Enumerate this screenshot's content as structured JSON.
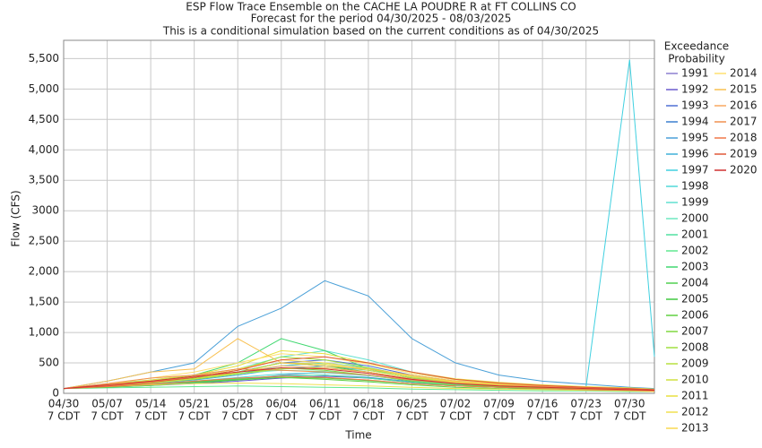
{
  "chart_data": {
    "type": "line",
    "title": "ESP Flow Trace Ensemble on the CACHE LA POUDRE R at FT COLLINS CO",
    "subtitle": [
      "Forecast for the period 04/30/2025 - 08/03/2025",
      "This is a conditional simulation based on the current conditions as of 04/30/2025"
    ],
    "x_label": "Time",
    "y_label": "Flow (CFS)",
    "legend_title": [
      "Exceedance",
      "Probability"
    ],
    "x": [
      "04/30",
      "05/07",
      "05/14",
      "05/21",
      "05/28",
      "06/04",
      "06/11",
      "06/18",
      "06/25",
      "07/02",
      "07/09",
      "07/16",
      "07/23",
      "07/30",
      "08/03"
    ],
    "xlim": [
      "04/30",
      "08/03"
    ],
    "xticks": [
      "04/30",
      "05/07",
      "05/14",
      "05/21",
      "05/28",
      "06/04",
      "06/11",
      "06/18",
      "06/25",
      "07/02",
      "07/09",
      "07/16",
      "07/23",
      "07/30"
    ],
    "xtick_suffix": "7 CDT",
    "ylim": [
      0,
      5800
    ],
    "yticks": [
      0,
      500,
      {
        "value": 1000,
        "label": "1,000"
      },
      {
        "value": 1500,
        "label": "1,500"
      },
      {
        "value": 2000,
        "label": "2,000"
      },
      {
        "value": 2500,
        "label": "2,500"
      },
      3000,
      {
        "value": 3500,
        "label": "3,500"
      },
      {
        "value": 4000,
        "label": "4,000"
      },
      {
        "value": 4500,
        "label": "4,500"
      },
      {
        "value": 5000,
        "label": "5,000"
      },
      {
        "value": 5500,
        "label": "5,500"
      }
    ],
    "grid": true,
    "series": [
      {
        "name": "1991",
        "color": "#8c7fd0",
        "values": [
          80,
          120,
          150,
          180,
          220,
          300,
          350,
          300,
          220,
          150,
          120,
          100,
          80,
          60,
          50
        ]
      },
      {
        "name": "1992",
        "color": "#6a5acd",
        "values": [
          80,
          100,
          130,
          160,
          200,
          250,
          280,
          250,
          180,
          130,
          100,
          80,
          70,
          50,
          40
        ]
      },
      {
        "name": "1993",
        "color": "#4f6fd4",
        "values": [
          80,
          150,
          200,
          250,
          350,
          500,
          550,
          450,
          300,
          200,
          150,
          120,
          100,
          80,
          60
        ]
      },
      {
        "name": "1994",
        "color": "#3a7fcf",
        "values": [
          80,
          110,
          140,
          180,
          230,
          280,
          300,
          260,
          190,
          140,
          110,
          90,
          70,
          50,
          40
        ]
      },
      {
        "name": "1995",
        "color": "#4aa0d8",
        "values": [
          80,
          200,
          350,
          500,
          1100,
          1400,
          1850,
          1600,
          900,
          500,
          300,
          200,
          150,
          100,
          80
        ]
      },
      {
        "name": "1996",
        "color": "#3fb0d8",
        "values": [
          80,
          130,
          170,
          220,
          300,
          400,
          450,
          380,
          260,
          180,
          140,
          110,
          90,
          70,
          50
        ]
      },
      {
        "name": "1997",
        "color": "#40d0e0",
        "values": [
          80,
          140,
          180,
          240,
          320,
          450,
          500,
          420,
          280,
          190,
          150,
          120,
          100,
          5480,
          600
        ]
      },
      {
        "name": "1998",
        "color": "#50d8d8",
        "values": [
          80,
          120,
          160,
          200,
          260,
          320,
          340,
          290,
          210,
          150,
          120,
          100,
          80,
          60,
          50
        ]
      },
      {
        "name": "1999",
        "color": "#60e0d0",
        "values": [
          80,
          160,
          220,
          300,
          400,
          600,
          700,
          550,
          350,
          220,
          160,
          130,
          100,
          80,
          60
        ]
      },
      {
        "name": "2000",
        "color": "#6ee8c0",
        "values": [
          80,
          140,
          200,
          260,
          330,
          380,
          360,
          300,
          200,
          140,
          110,
          90,
          70,
          50,
          40
        ]
      },
      {
        "name": "2001",
        "color": "#50e0a0",
        "values": [
          80,
          110,
          150,
          190,
          240,
          290,
          300,
          250,
          180,
          130,
          100,
          80,
          60,
          50,
          40
        ]
      },
      {
        "name": "2002",
        "color": "#60e890",
        "values": [
          80,
          90,
          100,
          110,
          120,
          110,
          100,
          90,
          70,
          60,
          50,
          40,
          40,
          30,
          30
        ]
      },
      {
        "name": "2003",
        "color": "#40d870",
        "values": [
          80,
          130,
          200,
          300,
          500,
          900,
          700,
          400,
          250,
          170,
          130,
          100,
          80,
          60,
          50
        ]
      },
      {
        "name": "2004",
        "color": "#50d050",
        "values": [
          80,
          100,
          130,
          170,
          220,
          260,
          250,
          210,
          160,
          120,
          100,
          80,
          60,
          50,
          40
        ]
      },
      {
        "name": "2005",
        "color": "#40c840",
        "values": [
          80,
          120,
          180,
          250,
          350,
          500,
          450,
          350,
          230,
          160,
          120,
          100,
          80,
          60,
          50
        ]
      },
      {
        "name": "2006",
        "color": "#60d040",
        "values": [
          80,
          110,
          150,
          190,
          230,
          260,
          230,
          190,
          140,
          100,
          80,
          70,
          60,
          40,
          30
        ]
      },
      {
        "name": "2007",
        "color": "#80d840",
        "values": [
          80,
          120,
          170,
          230,
          320,
          420,
          380,
          300,
          200,
          140,
          110,
          90,
          70,
          50,
          40
        ]
      },
      {
        "name": "2008",
        "color": "#a0e040",
        "values": [
          80,
          130,
          190,
          260,
          380,
          600,
          550,
          420,
          280,
          190,
          140,
          110,
          90,
          70,
          50
        ]
      },
      {
        "name": "2009",
        "color": "#b8e040",
        "values": [
          80,
          130,
          180,
          240,
          320,
          400,
          420,
          350,
          240,
          170,
          130,
          100,
          80,
          60,
          50
        ]
      },
      {
        "name": "2010",
        "color": "#d0e040",
        "values": [
          80,
          120,
          170,
          240,
          340,
          500,
          480,
          380,
          260,
          180,
          140,
          110,
          90,
          70,
          50
        ]
      },
      {
        "name": "2011",
        "color": "#e8e040",
        "values": [
          80,
          150,
          220,
          300,
          450,
          700,
          650,
          500,
          350,
          240,
          180,
          140,
          110,
          90,
          70
        ]
      },
      {
        "name": "2012",
        "color": "#f0e050",
        "values": [
          80,
          110,
          140,
          160,
          170,
          160,
          140,
          120,
          100,
          80,
          70,
          60,
          50,
          40,
          30
        ]
      },
      {
        "name": "2013",
        "color": "#f8d850",
        "values": [
          80,
          140,
          200,
          280,
          400,
          550,
          500,
          400,
          280,
          190,
          150,
          120,
          100,
          80,
          60
        ]
      },
      {
        "name": "2014",
        "color": "#ffe070",
        "values": [
          80,
          150,
          250,
          350,
          500,
          650,
          600,
          480,
          330,
          220,
          170,
          130,
          100,
          80,
          60
        ]
      },
      {
        "name": "2015",
        "color": "#f8c050",
        "values": [
          80,
          200,
          350,
          400,
          900,
          500,
          450,
          400,
          300,
          200,
          160,
          130,
          100,
          80,
          60
        ]
      },
      {
        "name": "2016",
        "color": "#f8a860",
        "values": [
          80,
          130,
          190,
          260,
          350,
          450,
          420,
          350,
          240,
          170,
          130,
          110,
          90,
          70,
          50
        ]
      },
      {
        "name": "2017",
        "color": "#f09050",
        "values": [
          80,
          160,
          250,
          300,
          400,
          380,
          350,
          300,
          220,
          160,
          130,
          110,
          90,
          70,
          50
        ]
      },
      {
        "name": "2018",
        "color": "#f07848",
        "values": [
          80,
          110,
          150,
          200,
          250,
          280,
          260,
          220,
          160,
          120,
          100,
          80,
          60,
          50,
          40
        ]
      },
      {
        "name": "2019",
        "color": "#e05838",
        "values": [
          80,
          120,
          180,
          260,
          380,
          550,
          600,
          500,
          350,
          230,
          170,
          130,
          100,
          80,
          60
        ]
      },
      {
        "name": "2020",
        "color": "#d03030",
        "values": [
          80,
          140,
          200,
          280,
          350,
          420,
          400,
          330,
          230,
          160,
          120,
          100,
          80,
          60,
          50
        ]
      }
    ]
  }
}
